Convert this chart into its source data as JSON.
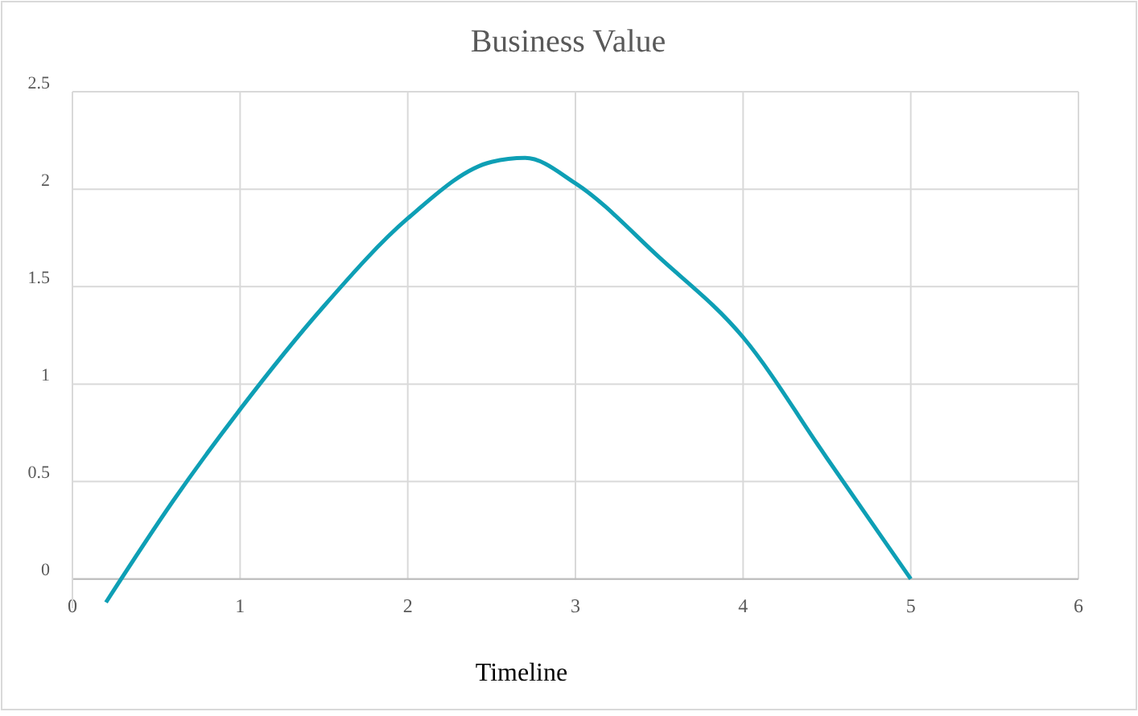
{
  "chart_data": {
    "type": "line",
    "title": "Business Value",
    "xlabel": "Timeline",
    "x": [
      0.2,
      0.6,
      1,
      1.5,
      2,
      2.5,
      2.7,
      3,
      3.5,
      4,
      4.5,
      5
    ],
    "series": [
      {
        "color": "#0e9fb5",
        "values": [
          -0.12,
          0.4,
          0.87,
          1.4,
          1.85,
          2.14,
          2.16,
          2.03,
          1.65,
          1.24,
          0.62,
          0
        ]
      }
    ],
    "xlim": [
      0,
      6
    ],
    "xticks": [
      0,
      1,
      2,
      3,
      4,
      5,
      6
    ],
    "ylim": [
      -0.15,
      2.5
    ],
    "yticks": [
      0,
      0.5,
      1,
      1.5,
      2,
      2.5
    ],
    "grid": true,
    "marker": "none",
    "line_style": "solid"
  }
}
